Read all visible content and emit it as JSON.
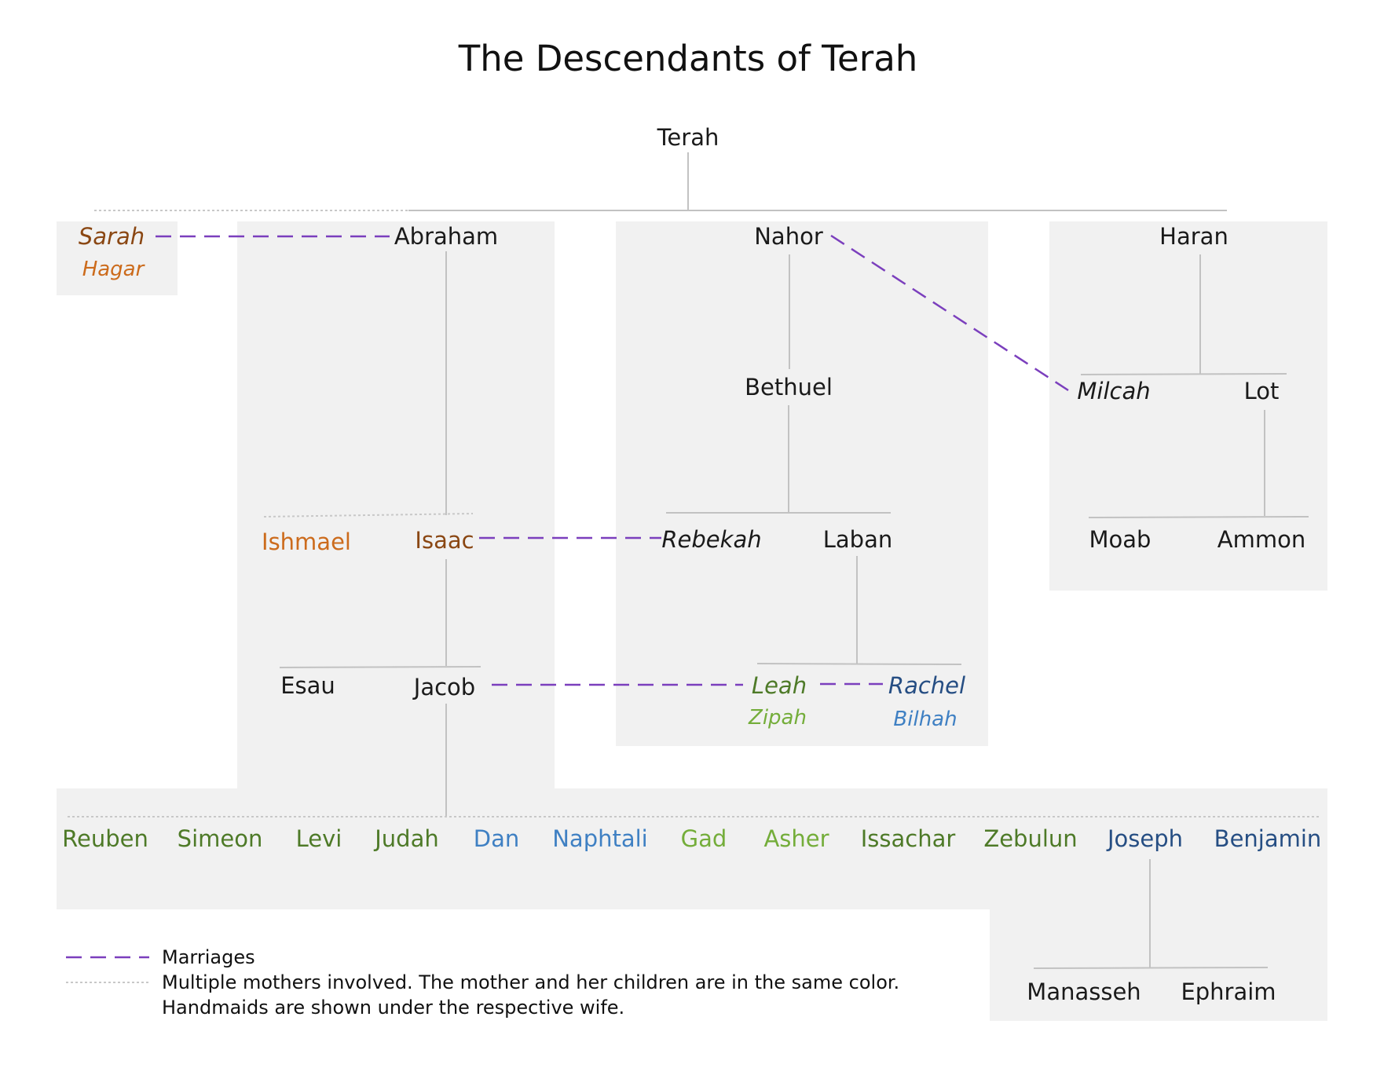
{
  "title": "The Descendants of Terah",
  "colors": {
    "box": "#f1f1f1",
    "line": "#c2c2c2",
    "dotted": "#c8c8c8",
    "marriage": "#7b3fbd",
    "black": "#1a1a1a",
    "sarah": "#8a4713",
    "hagar": "#cc6b1c",
    "leah": "#4e7a28",
    "zilpah": "#74ad3a",
    "rachel": "#264e83",
    "bilhah": "#3f80c3"
  },
  "people": {
    "terah": "Terah",
    "abraham": "Abraham",
    "nahor": "Nahor",
    "haran": "Haran",
    "sarah": "Sarah",
    "hagar": "Hagar",
    "bethuel": "Bethuel",
    "milcah": "Milcah",
    "lot": "Lot",
    "ishmael": "Ishmael",
    "isaac": "Isaac",
    "rebekah": "Rebekah",
    "laban": "Laban",
    "moab": "Moab",
    "ammon": "Ammon",
    "esau": "Esau",
    "jacob": "Jacob",
    "leah": "Leah",
    "rachel": "Rachel",
    "zipah": "Zipah",
    "bilhah": "Bilhah",
    "manasseh": "Manasseh",
    "ephraim": "Ephraim"
  },
  "sons_of_jacob": [
    {
      "name": "Reuben",
      "color": "#4e7a28"
    },
    {
      "name": "Simeon",
      "color": "#4e7a28"
    },
    {
      "name": "Levi",
      "color": "#4e7a28"
    },
    {
      "name": "Judah",
      "color": "#4e7a28"
    },
    {
      "name": "Dan",
      "color": "#3f80c3"
    },
    {
      "name": "Naphtali",
      "color": "#3f80c3"
    },
    {
      "name": "Gad",
      "color": "#74ad3a"
    },
    {
      "name": "Asher",
      "color": "#74ad3a"
    },
    {
      "name": "Issachar",
      "color": "#4e7a28"
    },
    {
      "name": "Zebulun",
      "color": "#4e7a28"
    },
    {
      "name": "Joseph",
      "color": "#264e83"
    },
    {
      "name": "Benjamin",
      "color": "#264e83"
    }
  ],
  "legend": {
    "marriages": "Marriages",
    "multiple_mothers": "Multiple mothers involved. The mother and her children are in the same color.",
    "handmaids": "Handmaids are shown under the respective wife."
  }
}
